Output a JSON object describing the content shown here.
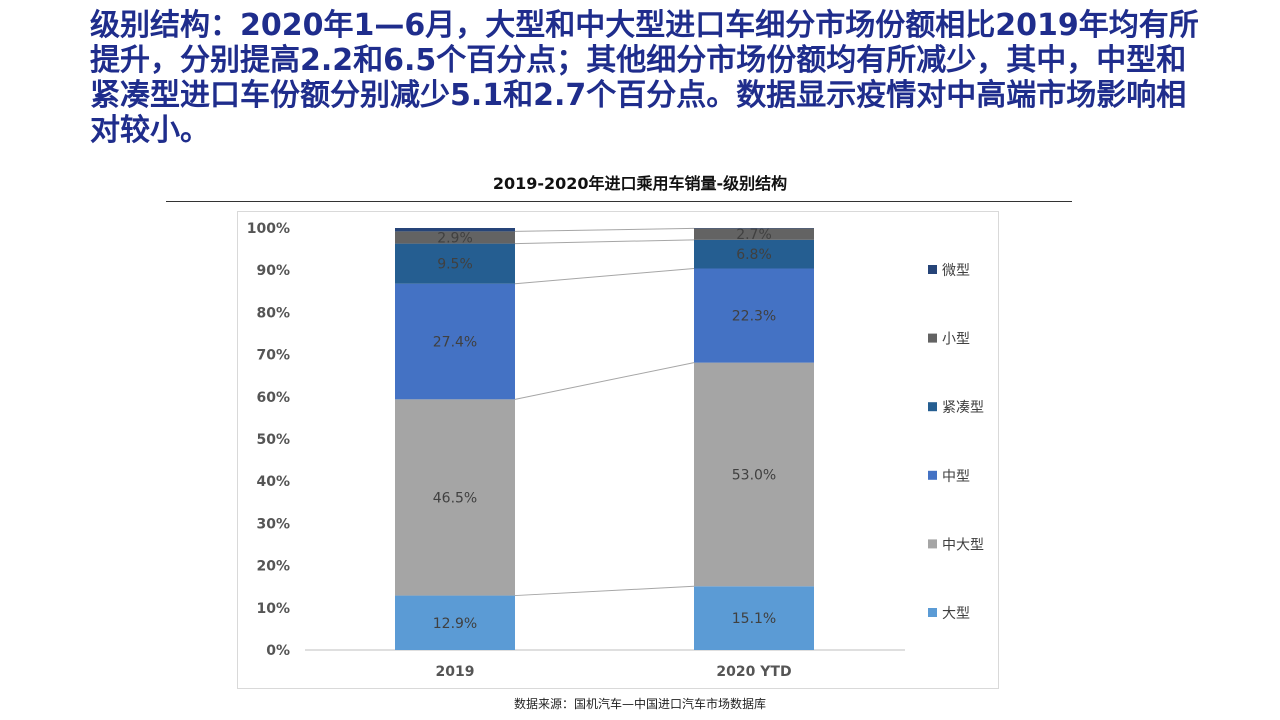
{
  "headline": "级别结构：2020年1—6月，大型和中大型进口车细分市场份额相比2019年均有所提升，分别提高2.2和6.5个百分点；其他细分市场份额均有所减少，其中，中型和紧凑型进口车份额分别减少5.1和2.7个百分点。数据显示疫情对中高端市场影响相对较小。",
  "source": "数据来源：国机汽车—中国进口汽车市场数据库",
  "chart_data": {
    "type": "bar",
    "stacked": true,
    "percent_stacked": true,
    "title": "2019-2020年进口乘用车销量-级别结构",
    "categories": [
      "2019",
      "2020 YTD"
    ],
    "ylim": [
      0,
      100
    ],
    "yticks": [
      "0%",
      "10%",
      "20%",
      "30%",
      "40%",
      "50%",
      "60%",
      "70%",
      "80%",
      "90%",
      "100%"
    ],
    "legend_position": "right",
    "series": [
      {
        "name": "大型",
        "values": [
          12.9,
          15.1
        ],
        "labels": [
          "12.9%",
          "15.1%"
        ],
        "color": "#5b9bd5"
      },
      {
        "name": "中大型",
        "values": [
          46.5,
          53.0
        ],
        "labels": [
          "46.5%",
          "53.0%"
        ],
        "color": "#a5a5a5"
      },
      {
        "name": "中型",
        "values": [
          27.4,
          22.3
        ],
        "labels": [
          "27.4%",
          "22.3%"
        ],
        "color": "#4472c4"
      },
      {
        "name": "紧凑型",
        "values": [
          9.5,
          6.8
        ],
        "labels": [
          "9.5%",
          "6.8%"
        ],
        "color": "#255e91"
      },
      {
        "name": "小型",
        "values": [
          2.9,
          2.7
        ],
        "labels": [
          "2.9%",
          "2.7%"
        ],
        "color": "#636363"
      },
      {
        "name": "微型",
        "values": [
          0.8,
          0.1
        ],
        "labels": [
          "",
          ""
        ],
        "color": "#264478"
      }
    ]
  }
}
